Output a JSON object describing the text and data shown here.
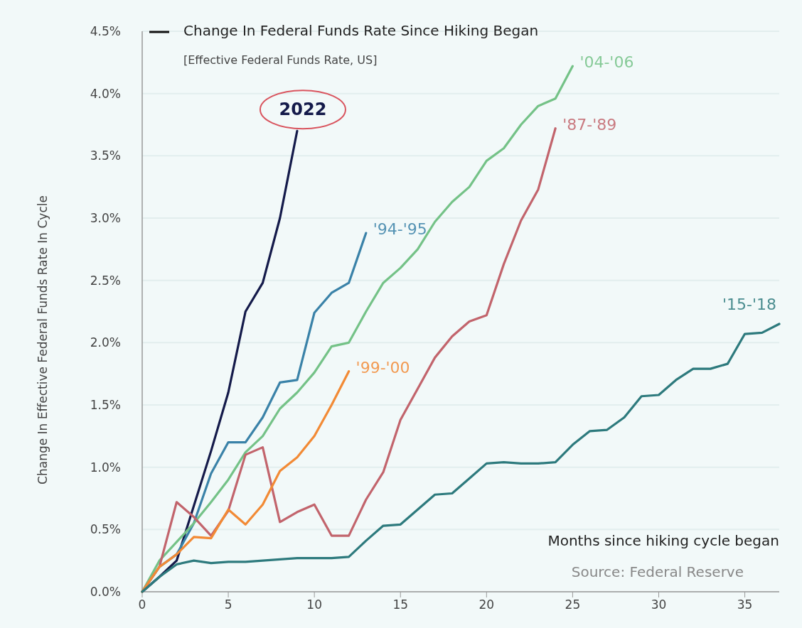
{
  "chart_data": {
    "type": "line",
    "title": "Change In Federal Funds Rate Since Hiking Began",
    "subtitle": "[Effective Federal Funds Rate, US]",
    "xlabel": "Months since hiking cycle began",
    "ylabel": "Change In Effective Federal Funds Rate In Cycle",
    "annotations": [
      "Source: Federal Reserve"
    ],
    "xlim": [
      0,
      37
    ],
    "xticks": [
      0,
      5,
      10,
      15,
      20,
      25,
      30,
      35
    ],
    "ylim": [
      0,
      4.5
    ],
    "yticks": [
      {
        "value": 0,
        "label": "0.0%"
      },
      {
        "value": 0.5,
        "label": "0.5%"
      },
      {
        "value": 1,
        "label": "1.0%"
      },
      {
        "value": 1.5,
        "label": "1.5%"
      },
      {
        "value": 2,
        "label": "2.0%"
      },
      {
        "value": 2.5,
        "label": "2.5%"
      },
      {
        "value": 3,
        "label": "3.0%"
      },
      {
        "value": 3.5,
        "label": "3.5%"
      },
      {
        "value": 4,
        "label": "4.0%"
      },
      {
        "value": 4.5,
        "label": "4.5%"
      }
    ],
    "grid": "y",
    "line_style": "solid",
    "marker": "none",
    "series": [
      {
        "name": "2022",
        "color": "#141a4a",
        "x": [
          0,
          1,
          2,
          3,
          4,
          5,
          6,
          7,
          8,
          9
        ],
        "values": [
          0,
          0.12,
          0.25,
          0.69,
          1.13,
          1.6,
          2.25,
          2.48,
          3.0,
          3.7
        ]
      },
      {
        "name": "'94-'95",
        "color": "#3a82a8",
        "x": [
          0,
          1,
          2,
          3,
          4,
          5,
          6,
          7,
          8,
          9,
          10,
          11,
          12,
          13
        ],
        "values": [
          0,
          0.2,
          0.3,
          0.55,
          0.95,
          1.2,
          1.2,
          1.4,
          1.68,
          1.7,
          2.24,
          2.4,
          2.48,
          2.88
        ]
      },
      {
        "name": "'04-'06",
        "color": "#74c287",
        "x": [
          0,
          1,
          2,
          3,
          4,
          5,
          6,
          7,
          8,
          9,
          10,
          11,
          12,
          13,
          14,
          15,
          16,
          17,
          18,
          19,
          20,
          21,
          22,
          23,
          24,
          25
        ],
        "values": [
          0,
          0.25,
          0.4,
          0.55,
          0.72,
          0.9,
          1.12,
          1.25,
          1.47,
          1.6,
          1.76,
          1.97,
          2.0,
          2.25,
          2.48,
          2.6,
          2.75,
          2.97,
          3.13,
          3.25,
          3.46,
          3.56,
          3.75,
          3.9,
          3.96,
          4.22
        ]
      },
      {
        "name": "'87-'89",
        "color": "#c2646c",
        "x": [
          0,
          1,
          2,
          3,
          4,
          5,
          6,
          7,
          8,
          9,
          10,
          11,
          12,
          13,
          14,
          15,
          16,
          17,
          18,
          19,
          20,
          21,
          22,
          23,
          24
        ],
        "values": [
          0,
          0.2,
          0.72,
          0.6,
          0.45,
          0.65,
          1.1,
          1.16,
          0.56,
          0.64,
          0.7,
          0.45,
          0.45,
          0.74,
          0.96,
          1.38,
          1.63,
          1.88,
          2.05,
          2.17,
          2.22,
          2.63,
          2.98,
          3.23,
          3.72
        ]
      },
      {
        "name": "'99-'00",
        "color": "#f28a35",
        "x": [
          0,
          1,
          2,
          3,
          4,
          5,
          6,
          7,
          8,
          9,
          10,
          11,
          12
        ],
        "values": [
          0,
          0.2,
          0.3,
          0.44,
          0.43,
          0.66,
          0.54,
          0.7,
          0.97,
          1.08,
          1.25,
          1.5,
          1.77
        ]
      },
      {
        "name": "'15-'18",
        "color": "#2d7a7d",
        "x": [
          0,
          1,
          2,
          3,
          4,
          5,
          6,
          7,
          8,
          9,
          10,
          11,
          12,
          13,
          14,
          15,
          16,
          17,
          18,
          19,
          20,
          21,
          22,
          23,
          24,
          25,
          26,
          27,
          28,
          29,
          30,
          31,
          32,
          33,
          34,
          35,
          36,
          37
        ],
        "values": [
          0,
          0.12,
          0.22,
          0.25,
          0.23,
          0.24,
          0.24,
          0.25,
          0.26,
          0.27,
          0.27,
          0.27,
          0.28,
          0.41,
          0.53,
          0.54,
          0.66,
          0.78,
          0.79,
          0.91,
          1.03,
          1.04,
          1.03,
          1.03,
          1.04,
          1.18,
          1.29,
          1.3,
          1.4,
          1.57,
          1.58,
          1.7,
          1.79,
          1.79,
          1.83,
          2.07,
          2.08,
          2.15
        ]
      }
    ]
  }
}
